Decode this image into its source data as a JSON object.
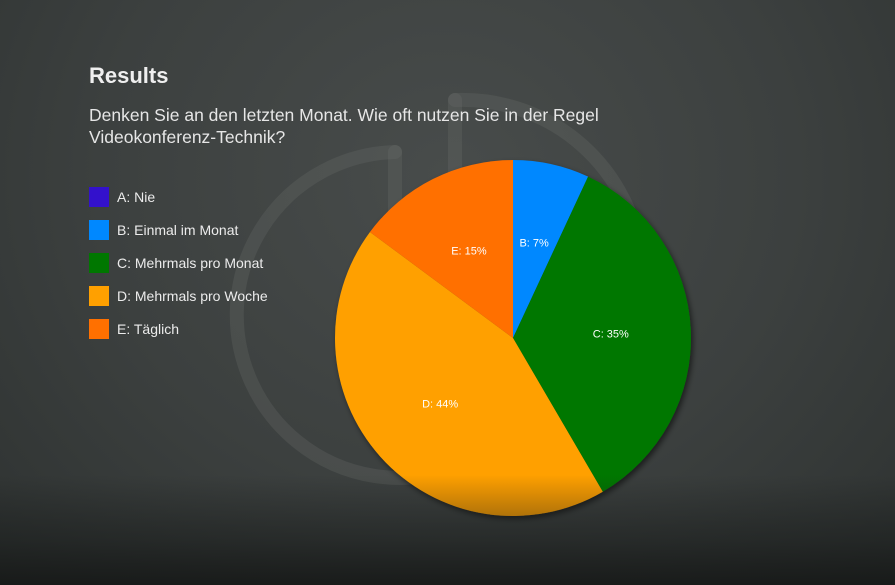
{
  "title": "Results",
  "question": "Denken Sie an den letzten Monat. Wie oft nutzen Sie in der Regel Videokonferenz-Technik?",
  "chart_data": {
    "type": "pie",
    "categories": [
      "A: Nie",
      "B: Einmal im Monat",
      "C: Mehrmals pro Monat",
      "D: Mehrmals pro Woche",
      "E: Täglich"
    ],
    "values": [
      0,
      7,
      35,
      44,
      15
    ],
    "slice_labels": [
      "",
      "B: 7%",
      "C: 35%",
      "D: 44%",
      "E: 15%"
    ],
    "colors": [
      "#3311cc",
      "#0088ff",
      "#007700",
      "#ffa000",
      "#ff7000"
    ],
    "legend_position": "left",
    "start_angle": "top, clockwise"
  }
}
